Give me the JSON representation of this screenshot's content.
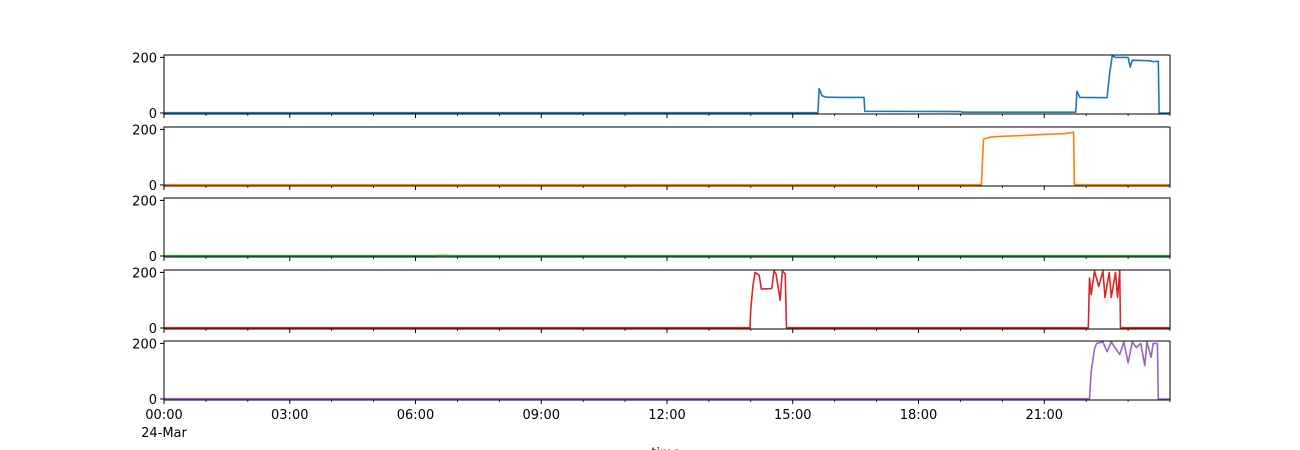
{
  "chart_data": {
    "type": "line",
    "layout": "5 vertically stacked subplots sharing one time x-axis",
    "xlabel": "time",
    "x_range": [
      "24-Mar 00:00",
      "24-Mar 24:00"
    ],
    "x_ticks": [
      "00:00",
      "03:00",
      "06:00",
      "09:00",
      "12:00",
      "15:00",
      "18:00",
      "21:00"
    ],
    "x_date_label": "24-Mar",
    "ylim": [
      0,
      205
    ],
    "y_ticks": [
      "0",
      "200"
    ],
    "grid": false,
    "legend": "none",
    "series": [
      {
        "color": "#1f77b4",
        "points": [
          [
            0,
            1
          ],
          [
            15.6,
            1
          ],
          [
            15.63,
            88
          ],
          [
            15.7,
            62
          ],
          [
            15.8,
            57
          ],
          [
            16.2,
            56
          ],
          [
            16.7,
            56
          ],
          [
            16.72,
            6
          ],
          [
            19,
            5
          ],
          [
            19.05,
            3
          ],
          [
            21.75,
            3
          ],
          [
            21.78,
            78
          ],
          [
            21.85,
            56
          ],
          [
            22.5,
            55
          ],
          [
            22.55,
            130
          ],
          [
            22.62,
            205
          ],
          [
            22.7,
            200
          ],
          [
            23,
            200
          ],
          [
            23.05,
            165
          ],
          [
            23.1,
            190
          ],
          [
            23.5,
            188
          ],
          [
            23.6,
            185
          ],
          [
            23.72,
            186
          ],
          [
            23.74,
            0
          ],
          [
            24,
            0
          ]
        ]
      },
      {
        "color": "#ff7f0e",
        "points": [
          [
            0,
            1
          ],
          [
            19.5,
            1
          ],
          [
            19.55,
            165
          ],
          [
            19.7,
            172
          ],
          [
            20,
            175
          ],
          [
            20.5,
            178
          ],
          [
            21,
            182
          ],
          [
            21.5,
            185
          ],
          [
            21.7,
            190
          ],
          [
            21.72,
            1
          ],
          [
            24,
            1
          ]
        ]
      },
      {
        "color": "#2ca02c",
        "points": [
          [
            0,
            1
          ],
          [
            6.5,
            1
          ],
          [
            6.55,
            2
          ],
          [
            7,
            1
          ],
          [
            24,
            1
          ]
        ]
      },
      {
        "color": "#d62728",
        "points": [
          [
            0,
            1
          ],
          [
            13.98,
            1
          ],
          [
            14.0,
            70
          ],
          [
            14.05,
            150
          ],
          [
            14.1,
            200
          ],
          [
            14.2,
            190
          ],
          [
            14.25,
            140
          ],
          [
            14.5,
            142
          ],
          [
            14.55,
            205
          ],
          [
            14.6,
            195
          ],
          [
            14.7,
            100
          ],
          [
            14.75,
            205
          ],
          [
            14.82,
            195
          ],
          [
            14.85,
            1
          ],
          [
            22.05,
            1
          ],
          [
            22.08,
            180
          ],
          [
            22.12,
            120
          ],
          [
            22.2,
            205
          ],
          [
            22.3,
            150
          ],
          [
            22.4,
            205
          ],
          [
            22.45,
            110
          ],
          [
            22.55,
            200
          ],
          [
            22.6,
            110
          ],
          [
            22.7,
            200
          ],
          [
            22.75,
            110
          ],
          [
            22.8,
            205
          ],
          [
            22.82,
            1
          ],
          [
            24,
            1
          ]
        ]
      },
      {
        "color": "#9467bd",
        "points": [
          [
            0,
            1
          ],
          [
            22.08,
            1
          ],
          [
            22.12,
            100
          ],
          [
            22.2,
            180
          ],
          [
            22.25,
            200
          ],
          [
            22.4,
            205
          ],
          [
            22.5,
            170
          ],
          [
            22.6,
            205
          ],
          [
            22.8,
            160
          ],
          [
            22.9,
            205
          ],
          [
            23.0,
            130
          ],
          [
            23.1,
            205
          ],
          [
            23.2,
            185
          ],
          [
            23.3,
            200
          ],
          [
            23.4,
            120
          ],
          [
            23.45,
            205
          ],
          [
            23.55,
            150
          ],
          [
            23.6,
            200
          ],
          [
            23.7,
            200
          ],
          [
            23.72,
            0
          ],
          [
            23.75,
            0
          ],
          [
            24,
            0
          ]
        ]
      }
    ]
  }
}
